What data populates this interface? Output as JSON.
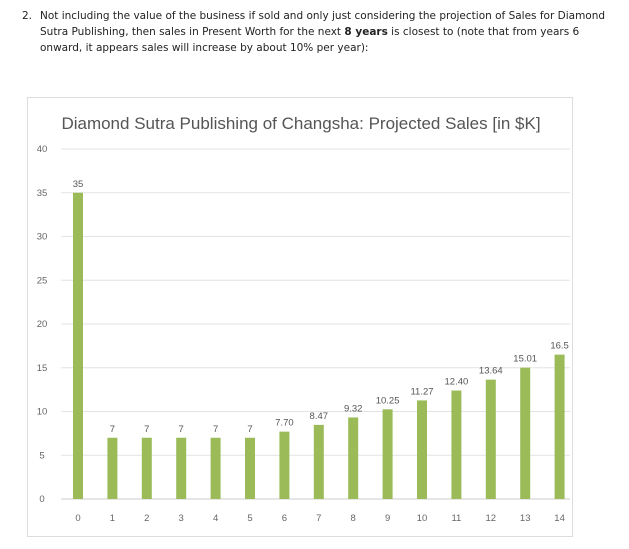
{
  "question": {
    "number": "2.",
    "text_before": "Not including the value of the business if sold and only just considering the projection of Sales for Diamond Sutra Publishing, then sales in Present Worth for the next ",
    "bold": "8 years",
    "text_after": " is closest to (note that from years 6 onward, it appears sales will increase by about 10% per year):"
  },
  "chart_data": {
    "type": "bar",
    "title": "Diamond Sutra Publishing of Changsha: Projected Sales [in $K]",
    "categories": [
      "0",
      "1",
      "2",
      "3",
      "4",
      "5",
      "6",
      "7",
      "8",
      "9",
      "10",
      "11",
      "12",
      "13",
      "14"
    ],
    "values": [
      35,
      7,
      7,
      7,
      7,
      7,
      7.7,
      8.47,
      9.32,
      10.25,
      11.27,
      12.4,
      13.64,
      15.01,
      16.5
    ],
    "data_labels": [
      "35",
      "7",
      "7",
      "7",
      "7",
      "7",
      "7.70",
      "8.47",
      "9.32",
      "10.25",
      "11.27",
      "12.40",
      "13.64",
      "15.01",
      "16.5"
    ],
    "ylim": [
      0,
      40
    ],
    "yticks": [
      0,
      5,
      10,
      15,
      20,
      25,
      30,
      35,
      40
    ],
    "grid": true,
    "bar_color": "#9BBB59",
    "xlabel": "",
    "ylabel": ""
  }
}
